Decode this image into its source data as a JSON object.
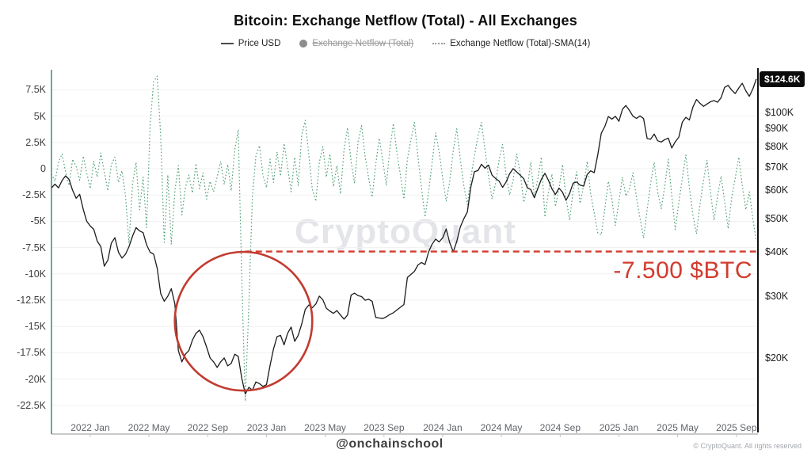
{
  "header": {
    "title": "Bitcoin: Exchange Netflow (Total) - All Exchanges"
  },
  "legend": [
    {
      "label": "Price USD",
      "swatch": "line",
      "color": "#4a4a4a",
      "disabled": false
    },
    {
      "label": "Exchange Netflow (Total)",
      "swatch": "dot",
      "color": "#8d8d8d",
      "disabled": true
    },
    {
      "label": "Exchange Netflow (Total)-SMA(14)",
      "swatch": "dotted-line",
      "color": "#9a9a9a",
      "disabled": false
    }
  ],
  "watermark": "CryptoQuant",
  "footer": {
    "handle": "@onchainschool",
    "copyright": "© CryptoQuant. All rights reserved"
  },
  "chart_data": {
    "type": "line",
    "title": "Bitcoin: Exchange Netflow (Total) - All Exchanges",
    "x_start": 2021.78,
    "x_step": 0.02,
    "x_axis": {
      "ticks": [
        {
          "label": "2022 Jan",
          "t": 2022.0
        },
        {
          "label": "2022 May",
          "t": 2022.333
        },
        {
          "label": "2022 Sep",
          "t": 2022.667
        },
        {
          "label": "2023 Jan",
          "t": 2023.0
        },
        {
          "label": "2023 May",
          "t": 2023.333
        },
        {
          "label": "2023 Sep",
          "t": 2023.667
        },
        {
          "label": "2024 Jan",
          "t": 2024.0
        },
        {
          "label": "2024 May",
          "t": 2024.333
        },
        {
          "label": "2024 Sep",
          "t": 2024.667
        },
        {
          "label": "2025 Jan",
          "t": 2025.0
        },
        {
          "label": "2025 May",
          "t": 2025.333
        },
        {
          "label": "2025 Sep",
          "t": 2025.667
        }
      ]
    },
    "left_axis": {
      "title": "Exchange Netflow (Total)-SMA(14)",
      "unit": "K BTC",
      "range": [
        -24,
        9.5
      ],
      "ticks": [
        {
          "label": "7.5K",
          "value": 7.5
        },
        {
          "label": "5K",
          "value": 5
        },
        {
          "label": "2.5K",
          "value": 2.5
        },
        {
          "label": "0",
          "value": 0
        },
        {
          "label": "-2.5K",
          "value": -2.5
        },
        {
          "label": "-5K",
          "value": -5
        },
        {
          "label": "-7.5K",
          "value": -7.5
        },
        {
          "label": "-10K",
          "value": -10
        },
        {
          "label": "-12.5K",
          "value": -12.5
        },
        {
          "label": "-15K",
          "value": -15
        },
        {
          "label": "-17.5K",
          "value": -17.5
        },
        {
          "label": "-20K",
          "value": -20
        },
        {
          "label": "-22.5K",
          "value": -22.5
        }
      ]
    },
    "right_axis": {
      "title": "Price USD",
      "scale": "log",
      "unit": "K USD",
      "ticks": [
        {
          "label": "$124.6K",
          "value": 124.6,
          "badge": true
        },
        {
          "label": "$100K",
          "value": 100
        },
        {
          "label": "$90K",
          "value": 90
        },
        {
          "label": "$80K",
          "value": 80
        },
        {
          "label": "$70K",
          "value": 70
        },
        {
          "label": "$60K",
          "value": 60
        },
        {
          "label": "$50K",
          "value": 50
        },
        {
          "label": "$40K",
          "value": 40
        },
        {
          "label": "$30K",
          "value": 30
        },
        {
          "label": "$20K",
          "value": 20
        }
      ]
    },
    "series": [
      {
        "name": "Exchange Netflow (Total)-SMA(14)",
        "axis": "left",
        "style": "dotted",
        "color": "#4f9f74",
        "values": [
          -0.5,
          -1.2,
          0.6,
          1.4,
          -0.3,
          -1.6,
          0.9,
          0.2,
          -1.1,
          1.2,
          -0.4,
          -1.9,
          0.7,
          -0.8,
          1.5,
          -0.3,
          -2.1,
          0.4,
          1.1,
          -1.3,
          -0.2,
          -2.6,
          -7.1,
          -1.4,
          0.6,
          -3.9,
          -0.8,
          -5.6,
          4.2,
          8.3,
          8.8,
          3.1,
          -7,
          -0.6,
          -7.2,
          -2.1,
          0.3,
          -4.4,
          -1.8,
          -0.6,
          -2.3,
          0.5,
          -1.9,
          -0.4,
          -2.9,
          -1.2,
          -2.2,
          -0.8,
          0.7,
          -1.5,
          0.4,
          -2.1,
          1.8,
          3.7,
          -10.5,
          -22.1,
          -13,
          -2.6,
          1.2,
          2.2,
          -0.6,
          -1.8,
          0.9,
          -1.3,
          1.6,
          -0.7,
          2.4,
          0.2,
          -2.2,
          1.1,
          -1.6,
          3.2,
          4.6,
          1.3,
          -1.9,
          -3.1,
          0.6,
          2.1,
          -0.8,
          1.4,
          -1.7,
          0.3,
          -2.4,
          1.8,
          3.9,
          0.7,
          -1.4,
          2.6,
          4.1,
          1.2,
          -0.9,
          -2.7,
          0.4,
          2.9,
          0.8,
          -1.6,
          1.9,
          4.3,
          1.5,
          -0.6,
          -2.9,
          0.9,
          2.8,
          4.4,
          1.1,
          -1.8,
          -4.6,
          -2.2,
          0.6,
          3.4,
          1.6,
          -0.9,
          -3.1,
          -1.2,
          1.7,
          3.8,
          0.9,
          -1.6,
          -3.4,
          -0.8,
          1.2,
          3.1,
          4.4,
          1.8,
          -0.7,
          -2.9,
          -1.4,
          0.8,
          2.3,
          -0.6,
          -2.5,
          -1.1,
          1.4,
          -0.4,
          -3.2,
          -1.8,
          0.6,
          -2.7,
          -0.9,
          1.1,
          -4.6,
          -2.3,
          -0.5,
          -3.6,
          -1.9,
          0.4,
          -2.8,
          -4.9,
          -2.1,
          -0.3,
          -3.3,
          -1.6,
          0.7,
          -2.4,
          -4.2,
          -6.1,
          -6.3,
          -3.8,
          -1.2,
          -2.9,
          -5.4,
          -3.1,
          -0.8,
          -2.6,
          -1.9,
          -0.4,
          -2.8,
          -4.7,
          -6.6,
          -3.9,
          -1.4,
          0.6,
          -2.2,
          -3.8,
          -1.7,
          0.9,
          -2.6,
          -5.8,
          -3.2,
          -0.9,
          1.3,
          -1.8,
          -4.4,
          -6.2,
          -3.4,
          -1.1,
          0.8,
          -2.3,
          -4.9,
          -2.6,
          -0.7,
          -3.1,
          -5.7,
          -2.8,
          -0.9,
          1.1,
          -1.6,
          -3.9,
          -2.2,
          -4.8,
          -6.9
        ]
      },
      {
        "name": "Price USD",
        "axis": "right",
        "style": "solid",
        "color": "#1c1c1c",
        "values": [
          61,
          62.5,
          61,
          64,
          66,
          64.5,
          60,
          57,
          58.5,
          53,
          49,
          47.5,
          46.5,
          43,
          41.5,
          36.5,
          38,
          42.5,
          44,
          40,
          38.5,
          39.5,
          41.5,
          44.5,
          47,
          46,
          45.5,
          42,
          40,
          39.5,
          36,
          30.5,
          29,
          30,
          31.5,
          28.5,
          21,
          19.5,
          20.5,
          21,
          22.5,
          23.5,
          24,
          23,
          21.5,
          20,
          19.5,
          18.8,
          19.5,
          20,
          19,
          19.3,
          20.5,
          20.2,
          17.5,
          15.8,
          16.5,
          16.2,
          17.1,
          16.9,
          16.6,
          16.8,
          19,
          21.2,
          23,
          23.2,
          21.8,
          23.5,
          24.5,
          22.3,
          23.2,
          25,
          27.5,
          28.3,
          27.8,
          28.5,
          30,
          29.3,
          27.7,
          27.2,
          26.8,
          27.3,
          26.5,
          25.8,
          26.5,
          30.2,
          30.6,
          30.1,
          29.9,
          29.2,
          29.4,
          29,
          26.1,
          26,
          25.9,
          26.2,
          26.6,
          26.9,
          27.4,
          27.9,
          28.4,
          33.9,
          34.6,
          35.3,
          36.8,
          37.4,
          36.9,
          40.1,
          42.2,
          43.6,
          42.8,
          44,
          46.6,
          42.6,
          40.1,
          42.9,
          47.2,
          49.8,
          52.1,
          61.5,
          67.8,
          68.3,
          71.2,
          69.4,
          70.8,
          66.3,
          64.9,
          63.8,
          61.2,
          63.4,
          66.9,
          69.2,
          67.7,
          66.3,
          64.8,
          61.1,
          60.3,
          57.2,
          60.8,
          64.5,
          67.1,
          64.2,
          60.6,
          58.4,
          60.9,
          59.3,
          56.2,
          58.8,
          62.9,
          63.4,
          62.1,
          61.7,
          66.6,
          68.2,
          67.4,
          75.6,
          87.3,
          91.2,
          97.4,
          95.8,
          97.5,
          94.4,
          102.1,
          104.7,
          101.3,
          97.6,
          96.2,
          97.8,
          96.1,
          84.3,
          83.9,
          86.8,
          83.1,
          82.4,
          83.7,
          84.5,
          79.2,
          82.5,
          85.1,
          93.8,
          96.9,
          95.2,
          103.6,
          108.9,
          106.2,
          104.1,
          105.7,
          107.3,
          108.1,
          106.9,
          110.2,
          117.9,
          119.4,
          115.8,
          113.2,
          117.4,
          121.1,
          115.3,
          111.2,
          116.8,
          124.6
        ]
      }
    ],
    "annotations": {
      "label": "-7.500 $BTC",
      "threshold_line": {
        "value": -7.5,
        "axis": "left",
        "t_start": 2022.88,
        "t_end": 2025.79,
        "style": "dashed",
        "color": "#d23b2e"
      },
      "circle": {
        "t_center": 2022.87,
        "rx_years": 0.39,
        "v_center_k": -14.5,
        "ry_k": 6.6,
        "color": "#c23b30"
      }
    }
  }
}
